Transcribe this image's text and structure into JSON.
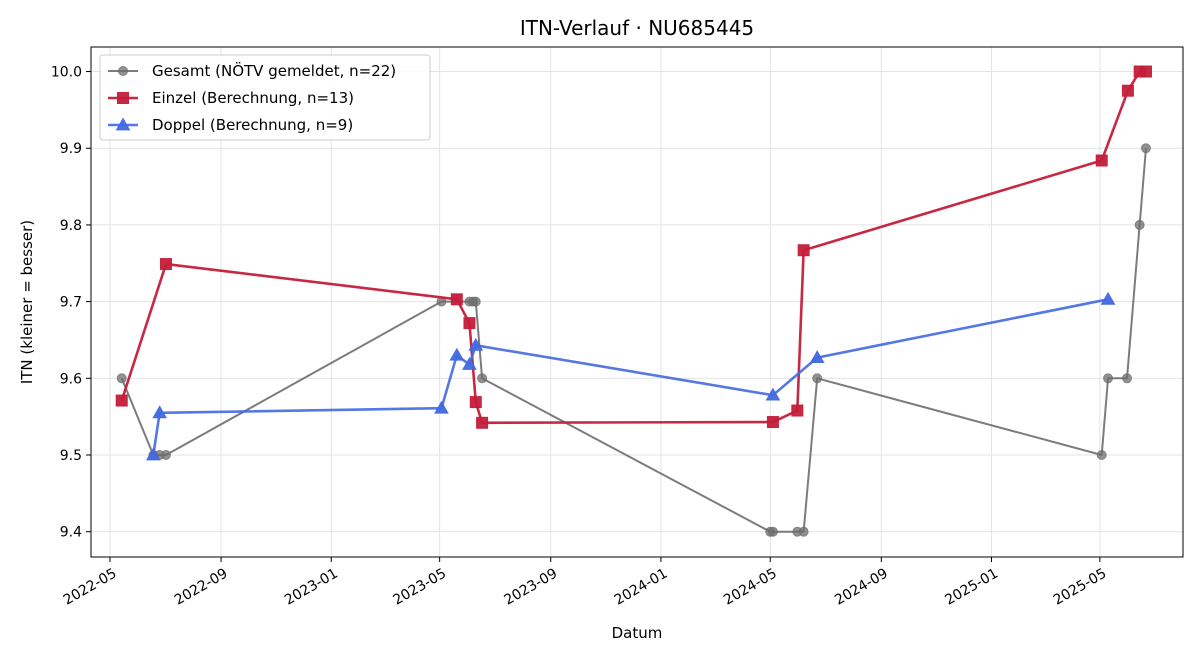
{
  "chart_data": {
    "type": "line",
    "title": "ITN-Verlauf · NU685445",
    "xlabel": "Datum",
    "ylabel": "ITN  (kleiner = besser)",
    "xlim": [
      "2022-04-10",
      "2025-08-01"
    ],
    "ylim": [
      9.367,
      10.032
    ],
    "x_ticks": [
      {
        "date": "2022-05-01",
        "label": "2022-05"
      },
      {
        "date": "2022-09-01",
        "label": "2022-09"
      },
      {
        "date": "2023-01-01",
        "label": "2023-01"
      },
      {
        "date": "2023-05-01",
        "label": "2023-05"
      },
      {
        "date": "2023-09-01",
        "label": "2023-09"
      },
      {
        "date": "2024-01-01",
        "label": "2024-01"
      },
      {
        "date": "2024-05-01",
        "label": "2024-05"
      },
      {
        "date": "2024-09-01",
        "label": "2024-09"
      },
      {
        "date": "2025-01-01",
        "label": "2025-01"
      },
      {
        "date": "2025-05-01",
        "label": "2025-05"
      }
    ],
    "y_ticks": [
      {
        "value": 9.4,
        "label": "9.4"
      },
      {
        "value": 9.5,
        "label": "9.5"
      },
      {
        "value": 9.6,
        "label": "9.6"
      },
      {
        "value": 9.7,
        "label": "9.7"
      },
      {
        "value": 9.8,
        "label": "9.8"
      },
      {
        "value": 9.9,
        "label": "9.9"
      },
      {
        "value": 10.0,
        "label": "10.0"
      }
    ],
    "grid": true,
    "legend_position": "top-left",
    "series": [
      {
        "name": "Gesamt (NÖTV gemeldet, n=22)",
        "color": "#6e6e6e",
        "marker": "circle",
        "points": [
          {
            "x": "2022-05-14",
            "y": 9.6
          },
          {
            "x": "2022-06-18",
            "y": 9.5
          },
          {
            "x": "2022-06-25",
            "y": 9.5
          },
          {
            "x": "2022-07-02",
            "y": 9.5
          },
          {
            "x": "2023-05-03",
            "y": 9.7
          },
          {
            "x": "2023-06-03",
            "y": 9.7
          },
          {
            "x": "2023-06-07",
            "y": 9.7
          },
          {
            "x": "2023-06-10",
            "y": 9.7
          },
          {
            "x": "2023-06-17",
            "y": 9.6
          },
          {
            "x": "2024-05-01",
            "y": 9.4
          },
          {
            "x": "2024-05-04",
            "y": 9.4
          },
          {
            "x": "2024-05-31",
            "y": 9.4
          },
          {
            "x": "2024-06-07",
            "y": 9.4
          },
          {
            "x": "2024-06-22",
            "y": 9.6
          },
          {
            "x": "2025-05-03",
            "y": 9.5
          },
          {
            "x": "2025-05-10",
            "y": 9.6
          },
          {
            "x": "2025-05-31",
            "y": 9.6
          },
          {
            "x": "2025-06-14",
            "y": 9.8
          },
          {
            "x": "2025-06-21",
            "y": 9.9
          }
        ]
      },
      {
        "name": "Einzel (Berechnung, n=13)",
        "color": "#c41e3a",
        "marker": "square",
        "points": [
          {
            "x": "2022-05-14",
            "y": 9.571
          },
          {
            "x": "2022-07-02",
            "y": 9.749
          },
          {
            "x": "2023-05-20",
            "y": 9.703
          },
          {
            "x": "2023-06-03",
            "y": 9.672
          },
          {
            "x": "2023-06-10",
            "y": 9.569
          },
          {
            "x": "2023-06-17",
            "y": 9.542
          },
          {
            "x": "2024-05-04",
            "y": 9.543
          },
          {
            "x": "2024-05-31",
            "y": 9.558
          },
          {
            "x": "2024-06-07",
            "y": 9.767
          },
          {
            "x": "2025-05-03",
            "y": 9.884
          },
          {
            "x": "2025-06-01",
            "y": 9.975
          },
          {
            "x": "2025-06-14",
            "y": 10.0
          },
          {
            "x": "2025-06-21",
            "y": 10.0
          }
        ]
      },
      {
        "name": "Doppel (Berechnung, n=9)",
        "color": "#4169e1",
        "marker": "triangle",
        "points": [
          {
            "x": "2022-06-18",
            "y": 9.5
          },
          {
            "x": "2022-06-25",
            "y": 9.555
          },
          {
            "x": "2023-05-03",
            "y": 9.561
          },
          {
            "x": "2023-05-20",
            "y": 9.63
          },
          {
            "x": "2023-06-03",
            "y": 9.618
          },
          {
            "x": "2023-06-10",
            "y": 9.643
          },
          {
            "x": "2024-05-04",
            "y": 9.578
          },
          {
            "x": "2024-06-22",
            "y": 9.627
          },
          {
            "x": "2025-05-10",
            "y": 9.703
          }
        ]
      }
    ]
  }
}
